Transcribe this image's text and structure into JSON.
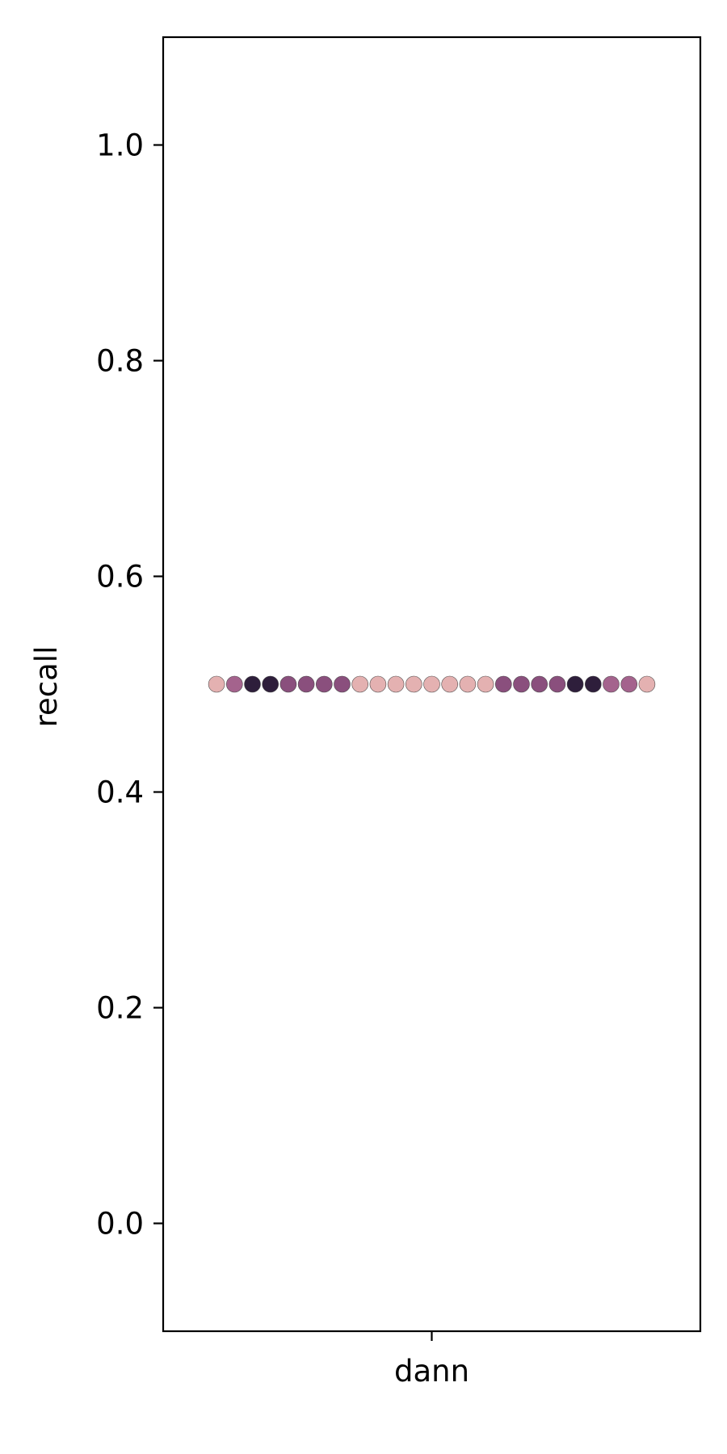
{
  "chart_data": {
    "type": "scatter",
    "title": "",
    "xlabel": "",
    "ylabel": "recall",
    "categories": [
      "dann"
    ],
    "ylim": [
      -0.1,
      1.1
    ],
    "yticks": [
      0.0,
      0.2,
      0.4,
      0.6,
      0.8,
      1.0
    ],
    "ytick_labels": [
      "0.0",
      "0.2",
      "0.4",
      "0.6",
      "0.8",
      "1.0"
    ],
    "grid": false,
    "legend": "none",
    "points": [
      {
        "category": "dann",
        "y": 0.5,
        "color": "#e4b1b1"
      },
      {
        "category": "dann",
        "y": 0.5,
        "color": "#a4638d"
      },
      {
        "category": "dann",
        "y": 0.5,
        "color": "#2e1e3b"
      },
      {
        "category": "dann",
        "y": 0.5,
        "color": "#2e1e3b"
      },
      {
        "category": "dann",
        "y": 0.5,
        "color": "#8a4f7d"
      },
      {
        "category": "dann",
        "y": 0.5,
        "color": "#8a4f7d"
      },
      {
        "category": "dann",
        "y": 0.5,
        "color": "#8a4f7d"
      },
      {
        "category": "dann",
        "y": 0.5,
        "color": "#8a4f7d"
      },
      {
        "category": "dann",
        "y": 0.5,
        "color": "#e4b1b1"
      },
      {
        "category": "dann",
        "y": 0.5,
        "color": "#e4b1b1"
      },
      {
        "category": "dann",
        "y": 0.5,
        "color": "#e4b1b1"
      },
      {
        "category": "dann",
        "y": 0.5,
        "color": "#e4b1b1"
      },
      {
        "category": "dann",
        "y": 0.5,
        "color": "#e4b1b1"
      },
      {
        "category": "dann",
        "y": 0.5,
        "color": "#e4b1b1"
      },
      {
        "category": "dann",
        "y": 0.5,
        "color": "#e4b1b1"
      },
      {
        "category": "dann",
        "y": 0.5,
        "color": "#e4b1b1"
      },
      {
        "category": "dann",
        "y": 0.5,
        "color": "#8a4f7d"
      },
      {
        "category": "dann",
        "y": 0.5,
        "color": "#8a4f7d"
      },
      {
        "category": "dann",
        "y": 0.5,
        "color": "#8a4f7d"
      },
      {
        "category": "dann",
        "y": 0.5,
        "color": "#8a4f7d"
      },
      {
        "category": "dann",
        "y": 0.5,
        "color": "#2e1e3b"
      },
      {
        "category": "dann",
        "y": 0.5,
        "color": "#2e1e3b"
      },
      {
        "category": "dann",
        "y": 0.5,
        "color": "#a4638d"
      },
      {
        "category": "dann",
        "y": 0.5,
        "color": "#a4638d"
      },
      {
        "category": "dann",
        "y": 0.5,
        "color": "#e4b1b1"
      }
    ]
  }
}
